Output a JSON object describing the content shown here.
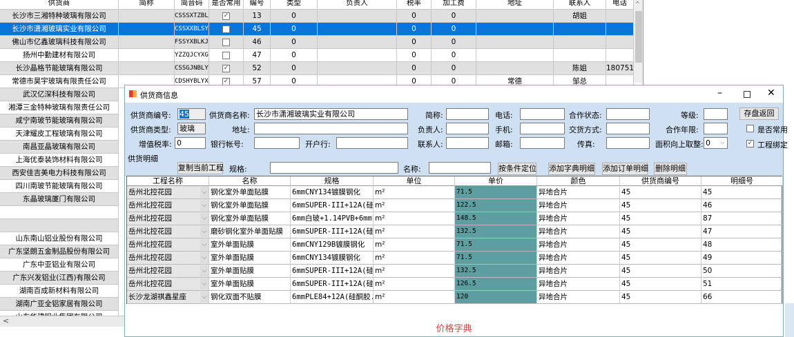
{
  "background_grid": {
    "columns": [
      "供货商",
      "简称",
      "简音码",
      "是否常用",
      "编号",
      "类型",
      "负责人",
      "税率",
      "加工费",
      "地址",
      "联系人",
      "电话"
    ],
    "rows": [
      {
        "supplier": "长沙市三湘特种玻璃有限公司",
        "abbr": "",
        "code": "CSSSXTZBL...",
        "common": true,
        "no": "13",
        "type": "0",
        "owner": "",
        "tax": "0",
        "fee": "0",
        "address": "",
        "contact": "胡姐",
        "phone": ""
      },
      {
        "supplier": "长沙市潇湘玻璃实业有限公司",
        "abbr": "",
        "code": "CSSXXBLSY...",
        "common": false,
        "no": "45",
        "type": "0",
        "owner": "",
        "tax": "0",
        "fee": "0",
        "address": "",
        "contact": "",
        "phone": "",
        "selected": true
      },
      {
        "supplier": "佛山市亿鑫玻璃科技有限公司",
        "abbr": "",
        "code": "FSSYXBLKJ...",
        "common": false,
        "no": "46",
        "type": "0",
        "owner": "",
        "tax": "0",
        "fee": "0",
        "address": "",
        "contact": "",
        "phone": ""
      },
      {
        "supplier": "扬州中勤建材有限公司",
        "abbr": "",
        "code": "YZZQJCYXGS",
        "common": false,
        "no": "47",
        "type": "0",
        "owner": "",
        "tax": "0",
        "fee": "0",
        "address": "",
        "contact": "",
        "phone": ""
      },
      {
        "supplier": "长沙晶格节能玻璃有限公司",
        "abbr": "",
        "code": "CSSGJNBLYXGS",
        "common": true,
        "no": "52",
        "type": "0",
        "owner": "",
        "tax": "0",
        "fee": "0",
        "address": "",
        "contact": "陈姐",
        "phone": "180751"
      },
      {
        "supplier": "常德市昊宇玻璃有限责任公司",
        "abbr": "",
        "code": "CDSHYBLYX...",
        "common": true,
        "no": "57",
        "type": "0",
        "owner": "",
        "tax": "0",
        "fee": "0",
        "address": "常德",
        "contact": "邹总",
        "phone": ""
      }
    ],
    "more_suppliers": [
      "武汉亿深科技有限公司",
      "湘潭三金特种玻璃有限责任公司",
      "咸宁南玻节能玻璃有限公司",
      "天津耀皮工程玻璃有限公司",
      "南昌亚晶玻璃有限公司",
      "上海优泰装饰材料有限公司",
      "西安佳吉美电力科技有限公司",
      "四川南玻节能玻璃有限公司",
      "东晶玻璃厦门有限公司",
      "",
      "",
      "山东南山铝业股份有限公司",
      "广东坚朗五金制品股份有限公司",
      "广东中亚铝业有限公司",
      "广东兴发铝业(江西)有限公司",
      "湖南百成新材料有限公司",
      "湖南广亚全铝家居有限公司",
      "山东华建铝业集团有限公司"
    ]
  },
  "dialog": {
    "title": "供货商信息",
    "form": {
      "supplier_no_label": "供货商编号:",
      "supplier_no": "45",
      "supplier_name_label": "供货商名称:",
      "supplier_name": "长沙市潇湘玻璃实业有限公司",
      "abbr_label": "简称:",
      "abbr": "",
      "phone_label": "电话:",
      "phone": "",
      "coop_status_label": "合作状态:",
      "coop_status": "",
      "level_label": "等级:",
      "level": "",
      "save_button": "存盘返回",
      "supplier_type_label": "供货商类型:",
      "supplier_type": "玻璃",
      "address_label": "地址:",
      "address": "",
      "owner_label": "负责人:",
      "owner": "",
      "mobile_label": "手机:",
      "mobile": "",
      "delivery_label": "交货方式:",
      "delivery": "",
      "coop_years_label": "合作年限:",
      "coop_years": "",
      "common_label": "是否常用",
      "common_checked": false,
      "vat_label": "增值税率:",
      "vat": "0",
      "bank_account_label": "银行帐号:",
      "bank_account": "",
      "bank_label": "开户行:",
      "bank": "",
      "contact_label": "联系人:",
      "contact": "",
      "email_label": "邮箱:",
      "email": "",
      "fax_label": "传真:",
      "fax": "",
      "round_label": "面积向上取整:",
      "round": "0",
      "bind_label": "工程绑定",
      "bind_checked": true
    },
    "detail": {
      "section_label": "供货明细",
      "copy_button": "复制当前工程",
      "spec_label": "规格:",
      "spec": "",
      "name_label": "名称:",
      "name": "",
      "locate_button": "按条件定位",
      "add_dict_button": "添加字典明细",
      "add_order_button": "添加订单明细",
      "delete_button": "删除明细",
      "columns": [
        "工程名称",
        "名称",
        "规格",
        "单位",
        "单价",
        "颜色",
        "供货商编号",
        "明细号"
      ],
      "rows": [
        [
          "岳州北控花园",
          "钢化室外单面贴膜",
          "6mmCNY134镀膜钢化",
          "m²",
          "71.5",
          "异地合片",
          "45",
          "45"
        ],
        [
          "岳州北控花园",
          "钢化室外单面贴膜",
          "6mmSUPER-III+12A(硅...",
          "m²",
          "122.5",
          "异地合片",
          "45",
          "46"
        ],
        [
          "岳州北控花园",
          "钢化室外单面贴膜",
          "6mm白玻+1.14PVB+6mm...",
          "m²",
          "148.5",
          "异地合片",
          "45",
          "87"
        ],
        [
          "岳州北控花园",
          "磨砂钢化室外单面贴膜",
          "6mmSUPER-III+12A(硅...",
          "m²",
          "132.5",
          "异地合片",
          "45",
          "47"
        ],
        [
          "岳州北控花园",
          "室外单面贴膜",
          "6mmCNY129B镀膜钢化",
          "m²",
          "71.5",
          "异地合片",
          "45",
          "48"
        ],
        [
          "岳州北控花园",
          "室外单面贴膜",
          "6mmCNY134镀膜钢化",
          "m²",
          "71.5",
          "异地合片",
          "45",
          "49"
        ],
        [
          "岳州北控花园",
          "室外单面贴膜",
          "6mmSUPER-III+12A(硅...",
          "m²",
          "132.5",
          "异地合片",
          "45",
          "50"
        ],
        [
          "岳州北控花园",
          "室外单面贴膜",
          "6mmSUPER-III+12A(硅...",
          "m²",
          "126.5",
          "异地合片",
          "45",
          "51"
        ],
        [
          "长沙龙湖祺鑫星座",
          "钢化双面不贴膜",
          "6mmPLE84+12A(硅酮胶...",
          "m²",
          "120",
          "异地合片",
          "45",
          "66"
        ]
      ]
    },
    "footer_label": "价格字典"
  },
  "colors": {
    "selection": "#0a74d8",
    "price_cell": "#5f9ea0",
    "form_bg": "#cfe0f3",
    "footer_label": "#e04040"
  }
}
